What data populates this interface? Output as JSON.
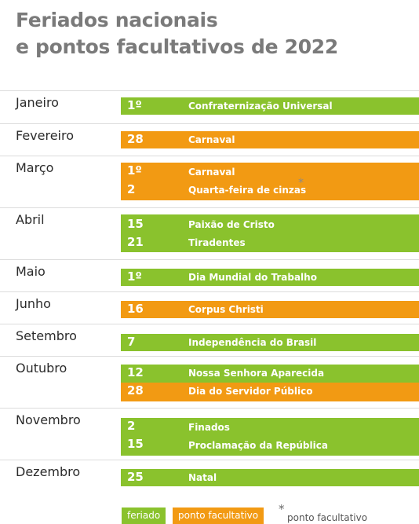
{
  "title": {
    "line1": "Feriados nacionais",
    "line2": "e pontos facultativos de 2022"
  },
  "colors": {
    "feriado": "#8ac22d",
    "ponto_facultativo": "#f29a13"
  },
  "months": [
    {
      "name": "Janeiro",
      "entries": [
        {
          "day": "1º",
          "label": "Confraternização Universal",
          "type": "feriado"
        }
      ]
    },
    {
      "name": "Fevereiro",
      "entries": [
        {
          "day": "28",
          "label": "Carnaval",
          "type": "ponto facultativo"
        }
      ]
    },
    {
      "name": "Março",
      "entries": [
        {
          "day": "1º",
          "label": "Carnaval",
          "type": "ponto facultativo"
        },
        {
          "day": "2",
          "label": "Quarta-feira de cinzas",
          "type": "ponto facultativo"
        }
      ]
    },
    {
      "name": "Abril",
      "entries": [
        {
          "day": "15",
          "label": "Paixão de Cristo",
          "type": "feriado"
        },
        {
          "day": "21",
          "label": "Tiradentes",
          "type": "feriado"
        }
      ]
    },
    {
      "name": "Maio",
      "entries": [
        {
          "day": "1º",
          "label": "Dia Mundial do Trabalho",
          "type": "feriado"
        }
      ]
    },
    {
      "name": "Junho",
      "entries": [
        {
          "day": "16",
          "label": "Corpus Christi",
          "type": "ponto facultativo"
        }
      ]
    },
    {
      "name": "Setembro",
      "entries": [
        {
          "day": "7",
          "label": "Independência do Brasil",
          "type": "feriado"
        }
      ]
    },
    {
      "name": "Outubro",
      "entries": [
        {
          "day": "12",
          "label": "Nossa Senhora Aparecida",
          "type": "feriado"
        },
        {
          "day": "28",
          "label": "Dia do Servidor Público",
          "type": "ponto facultativo"
        }
      ]
    },
    {
      "name": "Novembro",
      "entries": [
        {
          "day": "2",
          "label": "Finados",
          "type": "feriado"
        },
        {
          "day": "15",
          "label": "Proclamação da República",
          "type": "feriado"
        }
      ]
    },
    {
      "name": "Dezembro",
      "entries": [
        {
          "day": "25",
          "label": "Natal",
          "type": "feriado"
        }
      ]
    }
  ],
  "asterisk": "*",
  "legend": {
    "feriado": "feriado",
    "ponto_facultativo": "ponto facultativo",
    "star": "*",
    "star_note": "ponto facultativo"
  }
}
